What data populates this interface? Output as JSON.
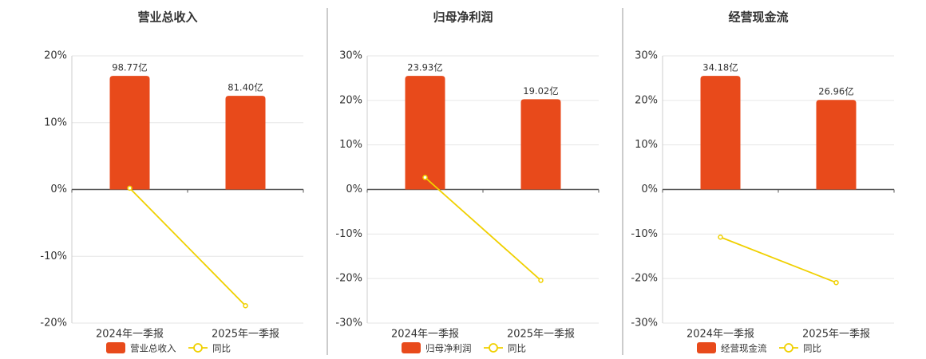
{
  "chart_data": [
    {
      "type": "combo",
      "title": "营业总收入",
      "categories": [
        "2024年一季报",
        "2025年一季报"
      ],
      "series": [
        {
          "name": "营业总收入",
          "type": "bar",
          "color": "#e84a1b",
          "values": [
            98.77,
            81.4
          ],
          "value_labels": [
            "98.77亿",
            "81.40亿"
          ]
        },
        {
          "name": "同比",
          "type": "line",
          "color": "#f0d000",
          "values": [
            0.2,
            -17.4
          ]
        }
      ],
      "ylim": [
        -20,
        20
      ],
      "yticks": [
        {
          "value": -20,
          "label": "-20%"
        },
        {
          "value": -10,
          "label": "-10%"
        },
        {
          "value": 0,
          "label": "0%"
        },
        {
          "value": 10,
          "label": "10%"
        },
        {
          "value": 20,
          "label": "20%"
        }
      ],
      "grid": true
    },
    {
      "type": "combo",
      "title": "归母净利润",
      "categories": [
        "2024年一季报",
        "2025年一季报"
      ],
      "series": [
        {
          "name": "归母净利润",
          "type": "bar",
          "color": "#e84a1b",
          "values": [
            23.93,
            19.02
          ],
          "value_labels": [
            "23.93亿",
            "19.02亿"
          ]
        },
        {
          "name": "同比",
          "type": "line",
          "color": "#f0d000",
          "values": [
            2.7,
            -20.4
          ]
        }
      ],
      "ylim": [
        -30,
        30
      ],
      "yticks": [
        {
          "value": -30,
          "label": "-30%"
        },
        {
          "value": -20,
          "label": "-20%"
        },
        {
          "value": -10,
          "label": "-10%"
        },
        {
          "value": 0,
          "label": "0%"
        },
        {
          "value": 10,
          "label": "10%"
        },
        {
          "value": 20,
          "label": "20%"
        },
        {
          "value": 30,
          "label": "30%"
        }
      ],
      "grid": true
    },
    {
      "type": "combo",
      "title": "经营现金流",
      "categories": [
        "2024年一季报",
        "2025年一季报"
      ],
      "series": [
        {
          "name": "经营现金流",
          "type": "bar",
          "color": "#e84a1b",
          "values": [
            34.18,
            26.96
          ],
          "value_labels": [
            "34.18亿",
            "26.96亿"
          ]
        },
        {
          "name": "同比",
          "type": "line",
          "color": "#f0d000",
          "values": [
            -10.7,
            -20.9
          ]
        }
      ],
      "ylim": [
        -30,
        30
      ],
      "yticks": [
        {
          "value": -30,
          "label": "-30%"
        },
        {
          "value": -20,
          "label": "-20%"
        },
        {
          "value": -10,
          "label": "-10%"
        },
        {
          "value": 0,
          "label": "0%"
        },
        {
          "value": 10,
          "label": "10%"
        },
        {
          "value": 20,
          "label": "20%"
        },
        {
          "value": 30,
          "label": "30%"
        }
      ],
      "grid": true
    }
  ]
}
